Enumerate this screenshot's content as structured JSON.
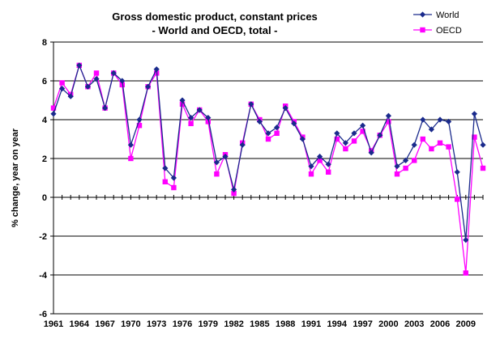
{
  "chart_data": {
    "type": "line",
    "title": "Gross domestic product, constant prices",
    "subtitle": "- World and OECD, total -",
    "xlabel": "",
    "ylabel": "% change, year on year",
    "ylim": [
      -6,
      8
    ],
    "yticks": [
      "8",
      "6",
      "4",
      "2",
      "0",
      "-2",
      "-4",
      "-6"
    ],
    "ytick_values": [
      8,
      6,
      4,
      2,
      0,
      -2,
      -4,
      -6
    ],
    "grid": "horizontal",
    "legend": "top-right",
    "x": [
      1961,
      1962,
      1963,
      1964,
      1965,
      1966,
      1967,
      1968,
      1969,
      1970,
      1971,
      1972,
      1973,
      1974,
      1975,
      1976,
      1977,
      1978,
      1979,
      1980,
      1981,
      1982,
      1983,
      1984,
      1985,
      1986,
      1987,
      1988,
      1989,
      1990,
      1991,
      1992,
      1993,
      1994,
      1995,
      1996,
      1997,
      1998,
      1999,
      2000,
      2001,
      2002,
      2003,
      2004,
      2005,
      2006,
      2007,
      2008,
      2009,
      2010,
      2011
    ],
    "xticks": [
      "1961",
      "1964",
      "1967",
      "1970",
      "1973",
      "1976",
      "1979",
      "1982",
      "1985",
      "1988",
      "1991",
      "1994",
      "1997",
      "2000",
      "2003",
      "2006",
      "2009"
    ],
    "xtick_values": [
      1961,
      1964,
      1967,
      1970,
      1973,
      1976,
      1979,
      1982,
      1985,
      1988,
      1991,
      1994,
      1997,
      2000,
      2003,
      2006,
      2009
    ],
    "series": [
      {
        "name": "World",
        "color": "#1a2a8c",
        "marker": "diamond",
        "values": [
          4.3,
          5.6,
          5.2,
          6.8,
          5.7,
          6.1,
          4.6,
          6.4,
          6.0,
          2.7,
          4.0,
          5.7,
          6.6,
          1.5,
          1.0,
          5.0,
          4.1,
          4.5,
          4.1,
          1.8,
          2.1,
          0.4,
          2.7,
          4.8,
          3.9,
          3.3,
          3.6,
          4.6,
          3.8,
          3.0,
          1.6,
          2.1,
          1.7,
          3.3,
          2.8,
          3.3,
          3.7,
          2.3,
          3.2,
          4.2,
          1.6,
          1.9,
          2.7,
          4.0,
          3.5,
          4.0,
          3.9,
          1.3,
          -2.2,
          4.3,
          2.7
        ]
      },
      {
        "name": "OECD",
        "color": "#ff00ff",
        "marker": "square",
        "values": [
          4.6,
          5.9,
          5.3,
          6.8,
          5.7,
          6.4,
          4.6,
          6.4,
          5.8,
          2.0,
          3.7,
          5.7,
          6.4,
          0.8,
          0.5,
          4.8,
          3.8,
          4.5,
          3.9,
          1.2,
          2.2,
          0.2,
          2.8,
          4.8,
          4.0,
          3.0,
          3.3,
          4.7,
          3.9,
          3.1,
          1.2,
          1.9,
          1.3,
          3.0,
          2.5,
          2.9,
          3.4,
          2.4,
          3.2,
          3.9,
          1.2,
          1.5,
          1.9,
          3.0,
          2.5,
          2.8,
          2.6,
          -0.1,
          -3.9,
          3.1,
          1.5
        ]
      }
    ]
  }
}
